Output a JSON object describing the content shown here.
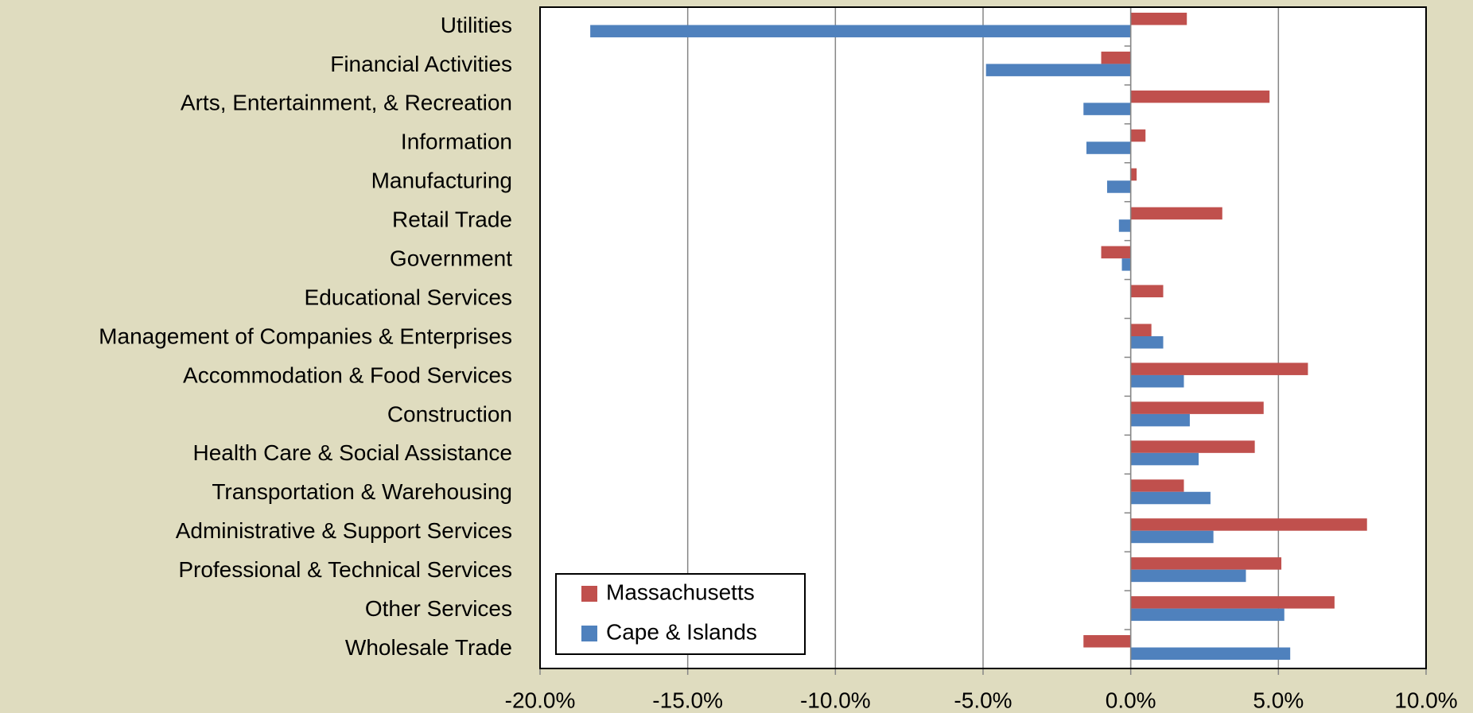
{
  "chart_data": {
    "type": "hbar",
    "categories": [
      "Utilities",
      "Financial Activities",
      "Arts, Entertainment, & Recreation",
      "Information",
      "Manufacturing",
      "Retail Trade",
      "Government",
      "Educational Services",
      "Management of Companies & Enterprises",
      "Accommodation & Food Services",
      "Construction",
      "Health Care & Social Assistance",
      "Transportation & Warehousing",
      "Administrative & Support Services",
      "Professional & Technical Services",
      "Other Services",
      "Wholesale Trade"
    ],
    "series": [
      {
        "name": "Massachusetts",
        "color": "#c0504d",
        "values": [
          1.9,
          -1.0,
          4.7,
          0.5,
          0.2,
          3.1,
          -1.0,
          1.1,
          0.7,
          6.0,
          4.5,
          4.2,
          1.8,
          8.0,
          5.1,
          6.9,
          -1.6
        ]
      },
      {
        "name": "Cape & Islands",
        "color": "#4f81bd",
        "values": [
          -18.3,
          -4.9,
          -1.6,
          -1.5,
          -0.8,
          -0.4,
          -0.3,
          0,
          1.1,
          1.8,
          2.0,
          2.3,
          2.7,
          2.8,
          3.9,
          5.2,
          5.4
        ]
      }
    ],
    "xlim": [
      -20,
      10
    ],
    "xticks": [
      {
        "value": -20,
        "label": "-20.0%"
      },
      {
        "value": -15,
        "label": "-15.0%"
      },
      {
        "value": -10,
        "label": "-10.0%"
      },
      {
        "value": -5,
        "label": "-5.0%"
      },
      {
        "value": 0,
        "label": "0.0%"
      },
      {
        "value": 5,
        "label": "5.0%"
      },
      {
        "value": 10,
        "label": "10.0%"
      }
    ],
    "grid": true,
    "legend": "lower-left"
  }
}
